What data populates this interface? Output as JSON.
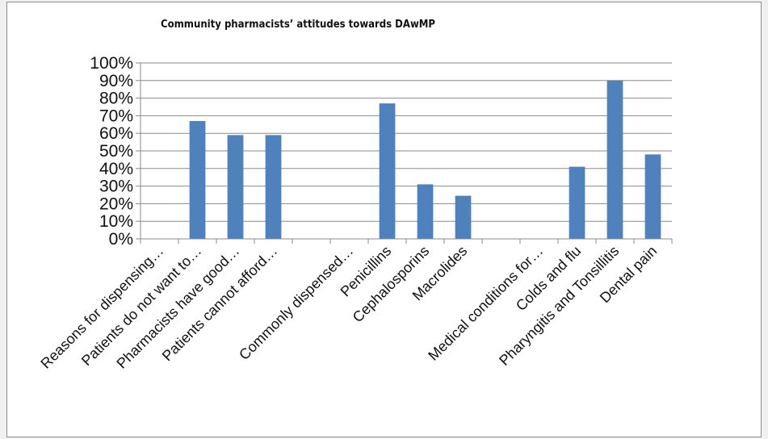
{
  "chart_data": {
    "type": "bar",
    "title": "Community pharmacists’ attitudes towards DAwMP",
    "xlabel": "",
    "ylabel": "",
    "ylim": [
      0,
      1
    ],
    "y_ticks": [
      "0%",
      "10%",
      "20%",
      "30%",
      "40%",
      "50%",
      "60%",
      "70%",
      "80%",
      "90%",
      "100%"
    ],
    "grid": true,
    "legend": "none",
    "bar_color": "#4f81bd",
    "categories": [
      "Reasons for dispensing…",
      "Patients do not want to…",
      "Pharmacists have good…",
      "Patients cannot afford…",
      "",
      "Commonly dispensed…",
      "Penicillins",
      "Cephalosporins",
      "Macrolides",
      "",
      "Medical conditions for…",
      "Colds and flu",
      "Pharyngitis and Tonsillitis",
      "Dental pain"
    ],
    "values": [
      null,
      0.67,
      0.59,
      0.59,
      null,
      null,
      0.77,
      0.31,
      0.245,
      null,
      null,
      0.41,
      0.9,
      0.48
    ]
  }
}
